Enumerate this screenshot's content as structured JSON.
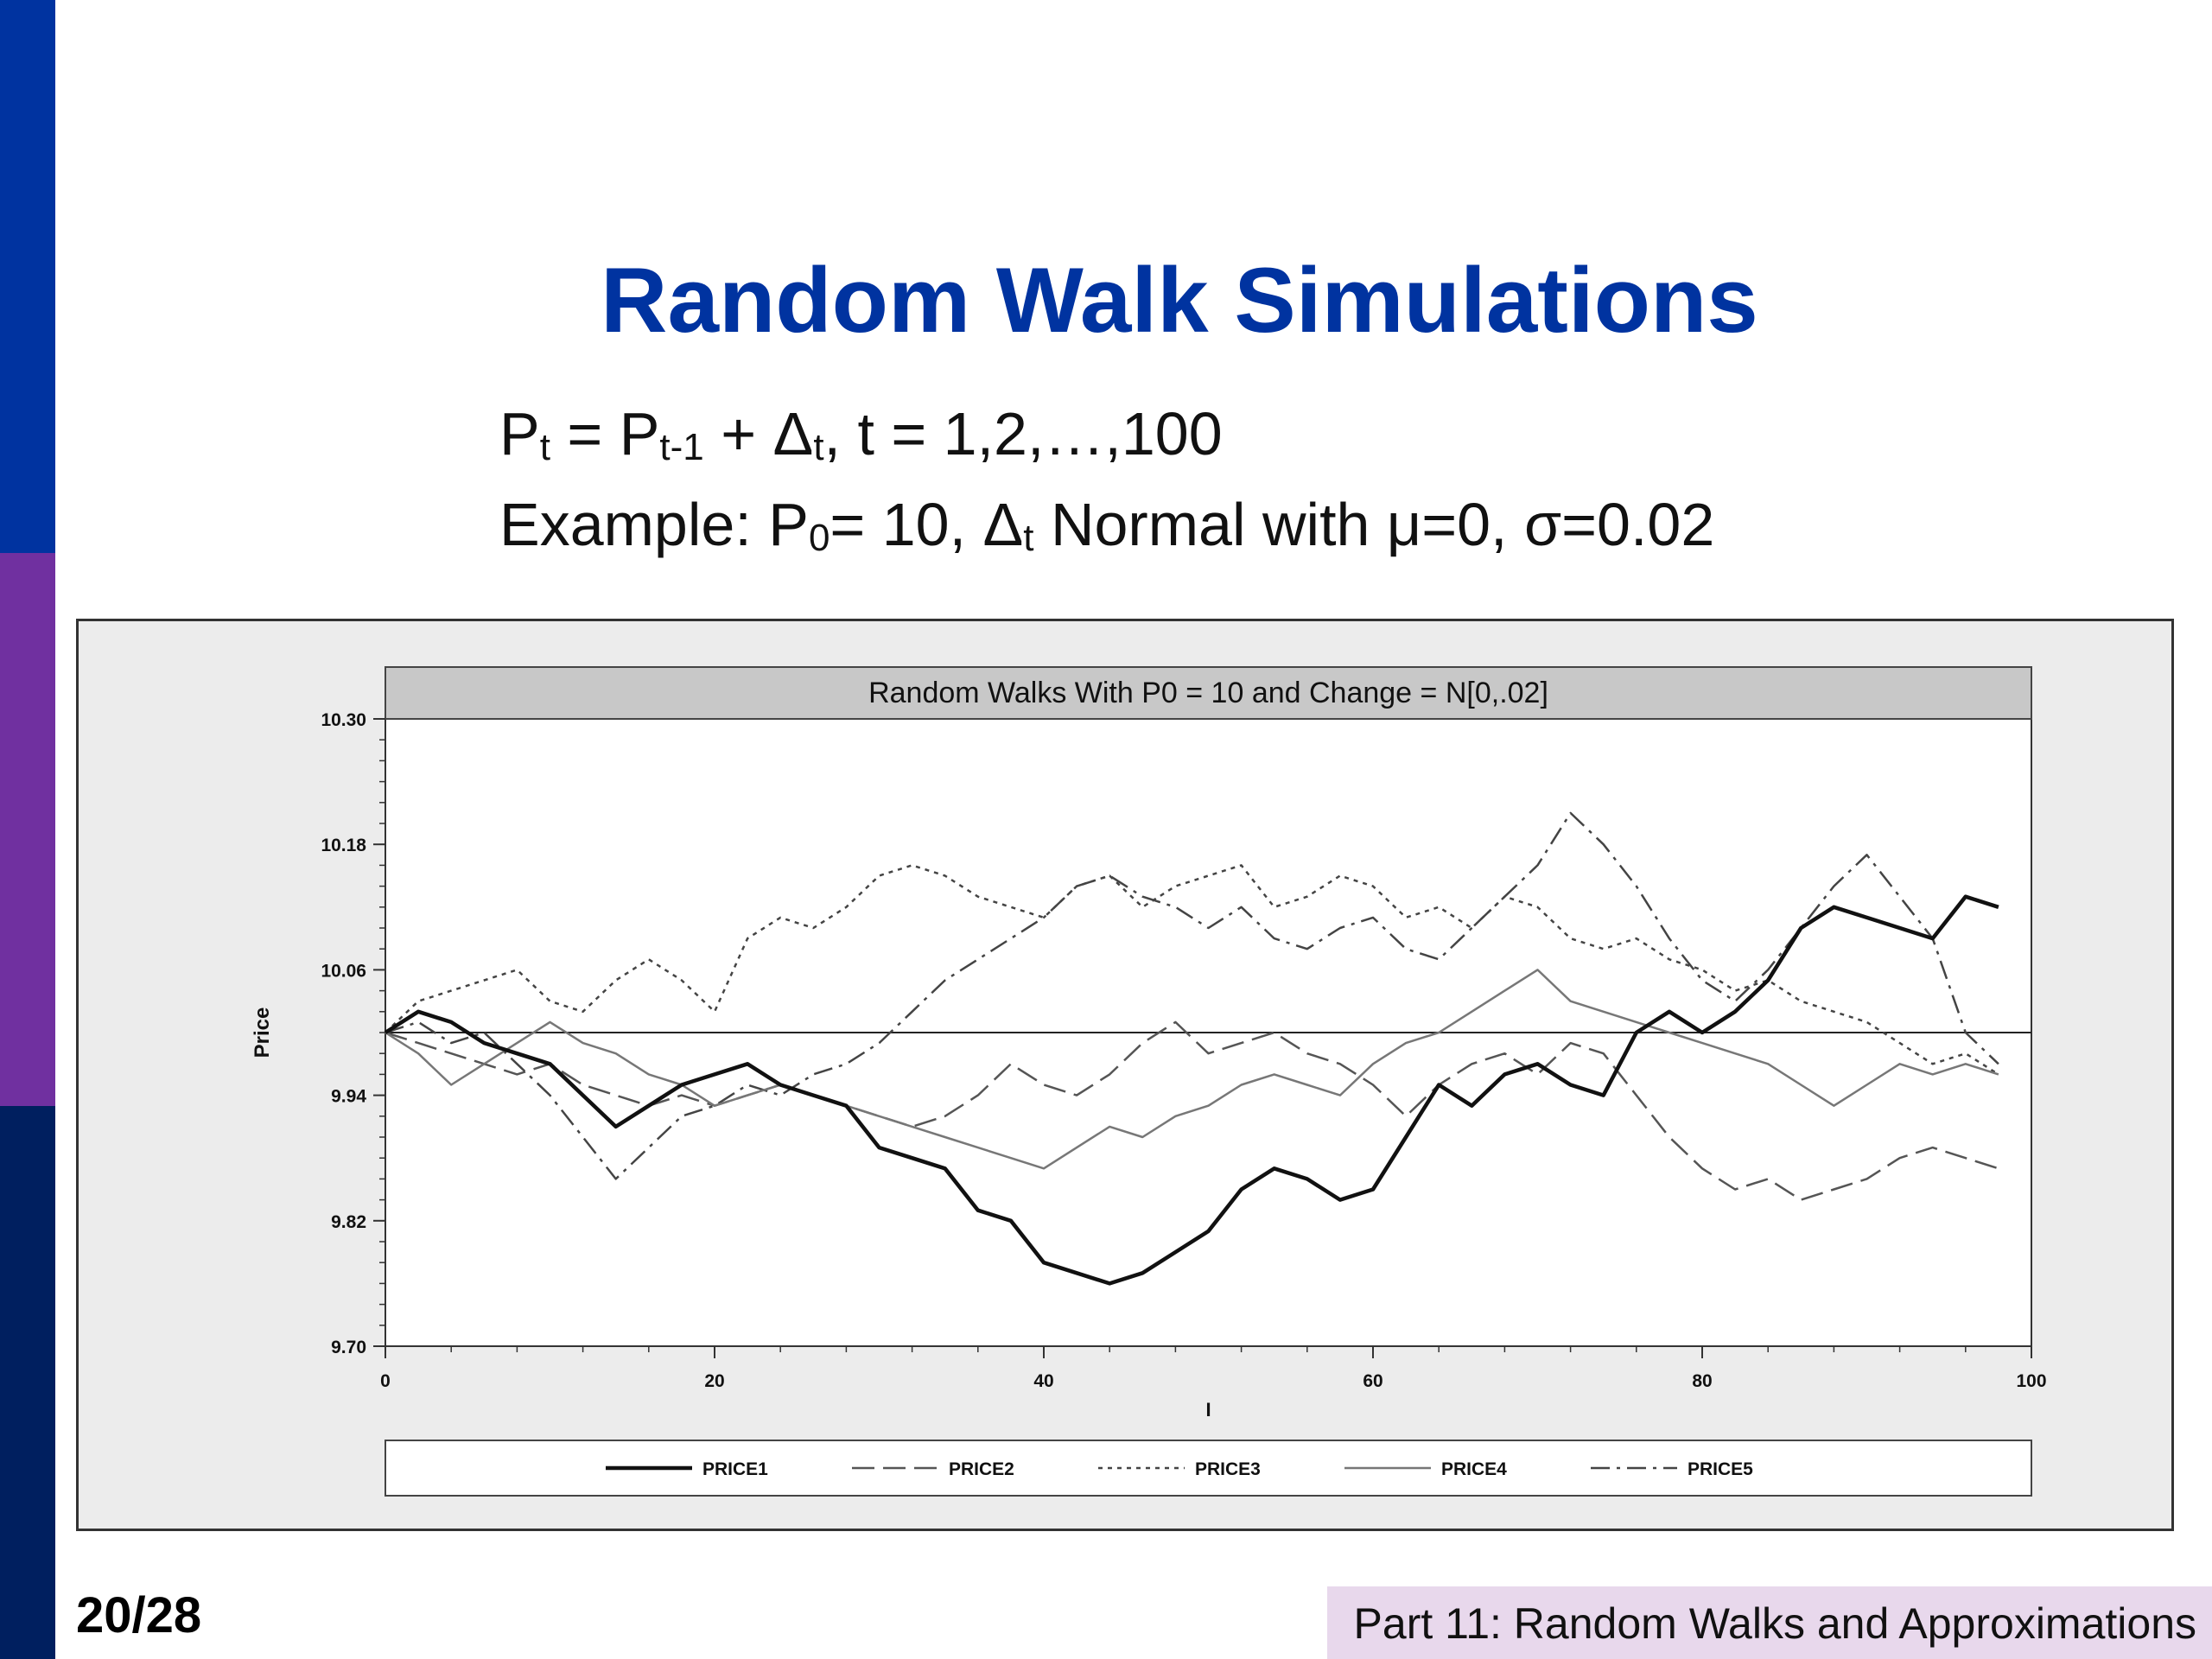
{
  "slide": {
    "title": "Random Walk Simulations",
    "page_number": "20/28",
    "footer": "Part 11: Random Walks and Approximations",
    "colors": {
      "title": "#0033a0",
      "bar_top": "#0033a0",
      "bar_middle": "#7030a0",
      "bar_bottom": "#001f5f",
      "footer_bg": "#e8d8ec"
    }
  },
  "formula": {
    "l1": {
      "p": "P",
      "sub_t": "t",
      "eq": " = P",
      "sub_t1": "t-1",
      "plus": " + Δ",
      "sub_t2": "t",
      "tail": ", t = 1,2,…,100"
    },
    "l2": {
      "pre": "Example: P",
      "sub0": "0",
      "mid": "= 10, Δ",
      "subt": "t",
      "post": " Normal with μ=0, σ=0.02"
    }
  },
  "chart_data": {
    "type": "line",
    "title": "Random Walks With P0 = 10 and Change = N[0,.02]",
    "xlabel": "I",
    "ylabel": "Price",
    "xlim": [
      0,
      100
    ],
    "ylim": [
      9.7,
      10.3
    ],
    "xticks": [
      "0",
      "20",
      "40",
      "60",
      "80",
      "100"
    ],
    "yticks": [
      "10.30",
      "10.18",
      "10.06",
      "9.94",
      "9.82",
      "9.70"
    ],
    "reference_line": 10.0,
    "grid": false,
    "legend_position": "bottom",
    "series": [
      {
        "name": "PRICE1",
        "style": "solid-bold",
        "x": [
          0,
          2,
          4,
          6,
          8,
          10,
          12,
          14,
          16,
          18,
          20,
          22,
          24,
          26,
          28,
          30,
          32,
          34,
          36,
          38,
          40,
          42,
          44,
          46,
          48,
          50,
          52,
          54,
          56,
          58,
          60,
          62,
          64,
          66,
          68,
          70,
          72,
          74,
          76,
          78,
          80,
          82,
          84,
          86,
          88,
          90,
          92,
          94,
          96,
          98
        ],
        "y": [
          10.0,
          10.02,
          10.01,
          9.99,
          9.98,
          9.97,
          9.94,
          9.91,
          9.93,
          9.95,
          9.96,
          9.97,
          9.95,
          9.94,
          9.93,
          9.89,
          9.88,
          9.87,
          9.83,
          9.82,
          9.78,
          9.77,
          9.76,
          9.77,
          9.79,
          9.81,
          9.85,
          9.87,
          9.86,
          9.84,
          9.85,
          9.9,
          9.95,
          9.93,
          9.96,
          9.97,
          9.95,
          9.94,
          10.0,
          10.02,
          10.0,
          10.02,
          10.05,
          10.1,
          10.12,
          10.11,
          10.1,
          10.09,
          10.13,
          10.12
        ]
      },
      {
        "name": "PRICE2",
        "style": "long-dash",
        "x": [
          0,
          2,
          4,
          6,
          8,
          10,
          12,
          14,
          16,
          18,
          20,
          22,
          24,
          26,
          28,
          30,
          32,
          34,
          36,
          38,
          40,
          42,
          44,
          46,
          48,
          50,
          52,
          54,
          56,
          58,
          60,
          62,
          64,
          66,
          68,
          70,
          72,
          74,
          76,
          78,
          80,
          82,
          84,
          86,
          88,
          90,
          92,
          94,
          96,
          98
        ],
        "y": [
          10.0,
          9.99,
          9.98,
          9.97,
          9.96,
          9.97,
          9.95,
          9.94,
          9.93,
          9.94,
          9.93,
          9.94,
          9.95,
          9.94,
          9.93,
          9.92,
          9.91,
          9.92,
          9.94,
          9.97,
          9.95,
          9.94,
          9.96,
          9.99,
          10.01,
          9.98,
          9.99,
          10.0,
          9.98,
          9.97,
          9.95,
          9.92,
          9.95,
          9.97,
          9.98,
          9.96,
          9.99,
          9.98,
          9.94,
          9.9,
          9.87,
          9.85,
          9.86,
          9.84,
          9.85,
          9.86,
          9.88,
          9.89,
          9.88,
          9.87
        ]
      },
      {
        "name": "PRICE3",
        "style": "dotted",
        "x": [
          0,
          2,
          4,
          6,
          8,
          10,
          12,
          14,
          16,
          18,
          20,
          22,
          24,
          26,
          28,
          30,
          32,
          34,
          36,
          38,
          40,
          42,
          44,
          46,
          48,
          50,
          52,
          54,
          56,
          58,
          60,
          62,
          64,
          66,
          68,
          70,
          72,
          74,
          76,
          78,
          80,
          82,
          84,
          86,
          88,
          90,
          92,
          94,
          96,
          98
        ],
        "y": [
          10.0,
          10.03,
          10.04,
          10.05,
          10.06,
          10.03,
          10.02,
          10.05,
          10.07,
          10.05,
          10.02,
          10.09,
          10.11,
          10.1,
          10.12,
          10.15,
          10.16,
          10.15,
          10.13,
          10.12,
          10.11,
          10.14,
          10.15,
          10.12,
          10.14,
          10.15,
          10.16,
          10.12,
          10.13,
          10.15,
          10.14,
          10.11,
          10.12,
          10.1,
          10.13,
          10.12,
          10.09,
          10.08,
          10.09,
          10.07,
          10.06,
          10.04,
          10.05,
          10.03,
          10.02,
          10.01,
          9.99,
          9.97,
          9.98,
          9.96
        ]
      },
      {
        "name": "PRICE4",
        "style": "solid-thin",
        "x": [
          0,
          2,
          4,
          6,
          8,
          10,
          12,
          14,
          16,
          18,
          20,
          22,
          24,
          26,
          28,
          30,
          32,
          34,
          36,
          38,
          40,
          42,
          44,
          46,
          48,
          50,
          52,
          54,
          56,
          58,
          60,
          62,
          64,
          66,
          68,
          70,
          72,
          74,
          76,
          78,
          80,
          82,
          84,
          86,
          88,
          90,
          92,
          94,
          96,
          98
        ],
        "y": [
          10.0,
          9.98,
          9.95,
          9.97,
          9.99,
          10.01,
          9.99,
          9.98,
          9.96,
          9.95,
          9.93,
          9.94,
          9.95,
          9.94,
          9.93,
          9.92,
          9.91,
          9.9,
          9.89,
          9.88,
          9.87,
          9.89,
          9.91,
          9.9,
          9.92,
          9.93,
          9.95,
          9.96,
          9.95,
          9.94,
          9.97,
          9.99,
          10.0,
          10.02,
          10.04,
          10.06,
          10.03,
          10.02,
          10.01,
          10.0,
          9.99,
          9.98,
          9.97,
          9.95,
          9.93,
          9.95,
          9.97,
          9.96,
          9.97,
          9.96
        ]
      },
      {
        "name": "PRICE5",
        "style": "dash-dot",
        "x": [
          0,
          2,
          4,
          6,
          8,
          10,
          12,
          14,
          16,
          18,
          20,
          22,
          24,
          26,
          28,
          30,
          32,
          34,
          36,
          38,
          40,
          42,
          44,
          46,
          48,
          50,
          52,
          54,
          56,
          58,
          60,
          62,
          64,
          66,
          68,
          70,
          72,
          74,
          76,
          78,
          80,
          82,
          84,
          86,
          88,
          90,
          92,
          94,
          96,
          98
        ],
        "y": [
          10.0,
          10.01,
          9.99,
          10.0,
          9.97,
          9.94,
          9.9,
          9.86,
          9.89,
          9.92,
          9.93,
          9.95,
          9.94,
          9.96,
          9.97,
          9.99,
          10.02,
          10.05,
          10.07,
          10.09,
          10.11,
          10.14,
          10.15,
          10.13,
          10.12,
          10.1,
          10.12,
          10.09,
          10.08,
          10.1,
          10.11,
          10.08,
          10.07,
          10.1,
          10.13,
          10.16,
          10.21,
          10.18,
          10.14,
          10.09,
          10.05,
          10.03,
          10.06,
          10.1,
          10.14,
          10.17,
          10.13,
          10.09,
          10.0,
          9.97
        ]
      }
    ]
  }
}
